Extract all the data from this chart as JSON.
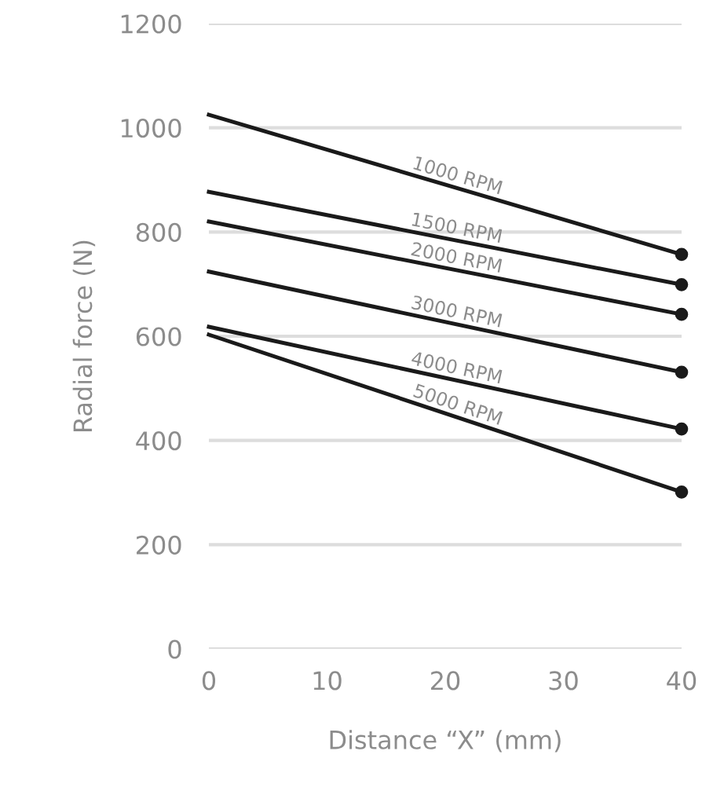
{
  "chart_data": {
    "type": "line",
    "xlabel": "Distance “X” (mm)",
    "ylabel": "Radial force (N)",
    "x": [
      0,
      40
    ],
    "series": [
      {
        "name": "1000 RPM",
        "color": "#1a1a1a",
        "values": [
          1025,
          757
        ]
      },
      {
        "name": "1500 RPM",
        "color": "#1a1a1a",
        "values": [
          877,
          699
        ]
      },
      {
        "name": "2000 RPM",
        "color": "#1a1a1a",
        "values": [
          820,
          642
        ]
      },
      {
        "name": "3000 RPM",
        "color": "#1a1a1a",
        "values": [
          724,
          531
        ]
      },
      {
        "name": "4000 RPM",
        "color": "#1a1a1a",
        "values": [
          618,
          422
        ]
      },
      {
        "name": "5000 RPM",
        "color": "#1a1a1a",
        "values": [
          603,
          301
        ]
      }
    ],
    "xlim": [
      0,
      40
    ],
    "xticks": [
      0,
      10,
      20,
      30,
      40
    ],
    "ylim": [
      0,
      1200
    ],
    "yticks": [
      0,
      200,
      400,
      600,
      800,
      1000,
      1200
    ],
    "grid": "y",
    "marker": "circle",
    "line_style": "solid"
  }
}
